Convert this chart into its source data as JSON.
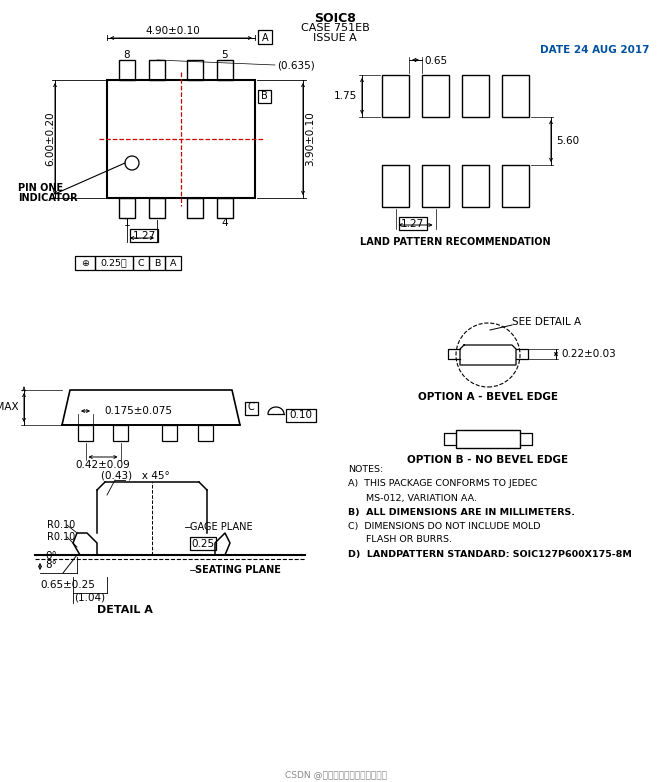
{
  "title": "SOIC8",
  "subtitle1": "CASE 751EB",
  "subtitle2": "ISSUE A",
  "date_text": "DATE 24 AUG 2017",
  "bg_color": "#ffffff",
  "lc": "#000000",
  "rc": "#cc0000",
  "notes": [
    "NOTES:",
    "A)  THIS PACKAGE CONFORMS TO JEDEC",
    "      MS-012, VARIATION AA.",
    "B)  ALL DIMENSIONS ARE IN MILLIMETERS.",
    "C)  DIMENSIONS DO NOT INCLUDE MOLD",
    "      FLASH OR BURRS.",
    "D)  LANDPATTERN STANDARD: SOIC127P600X175-8M"
  ],
  "watermark": "CSDN @深圳市恒雅达电子有限公司"
}
